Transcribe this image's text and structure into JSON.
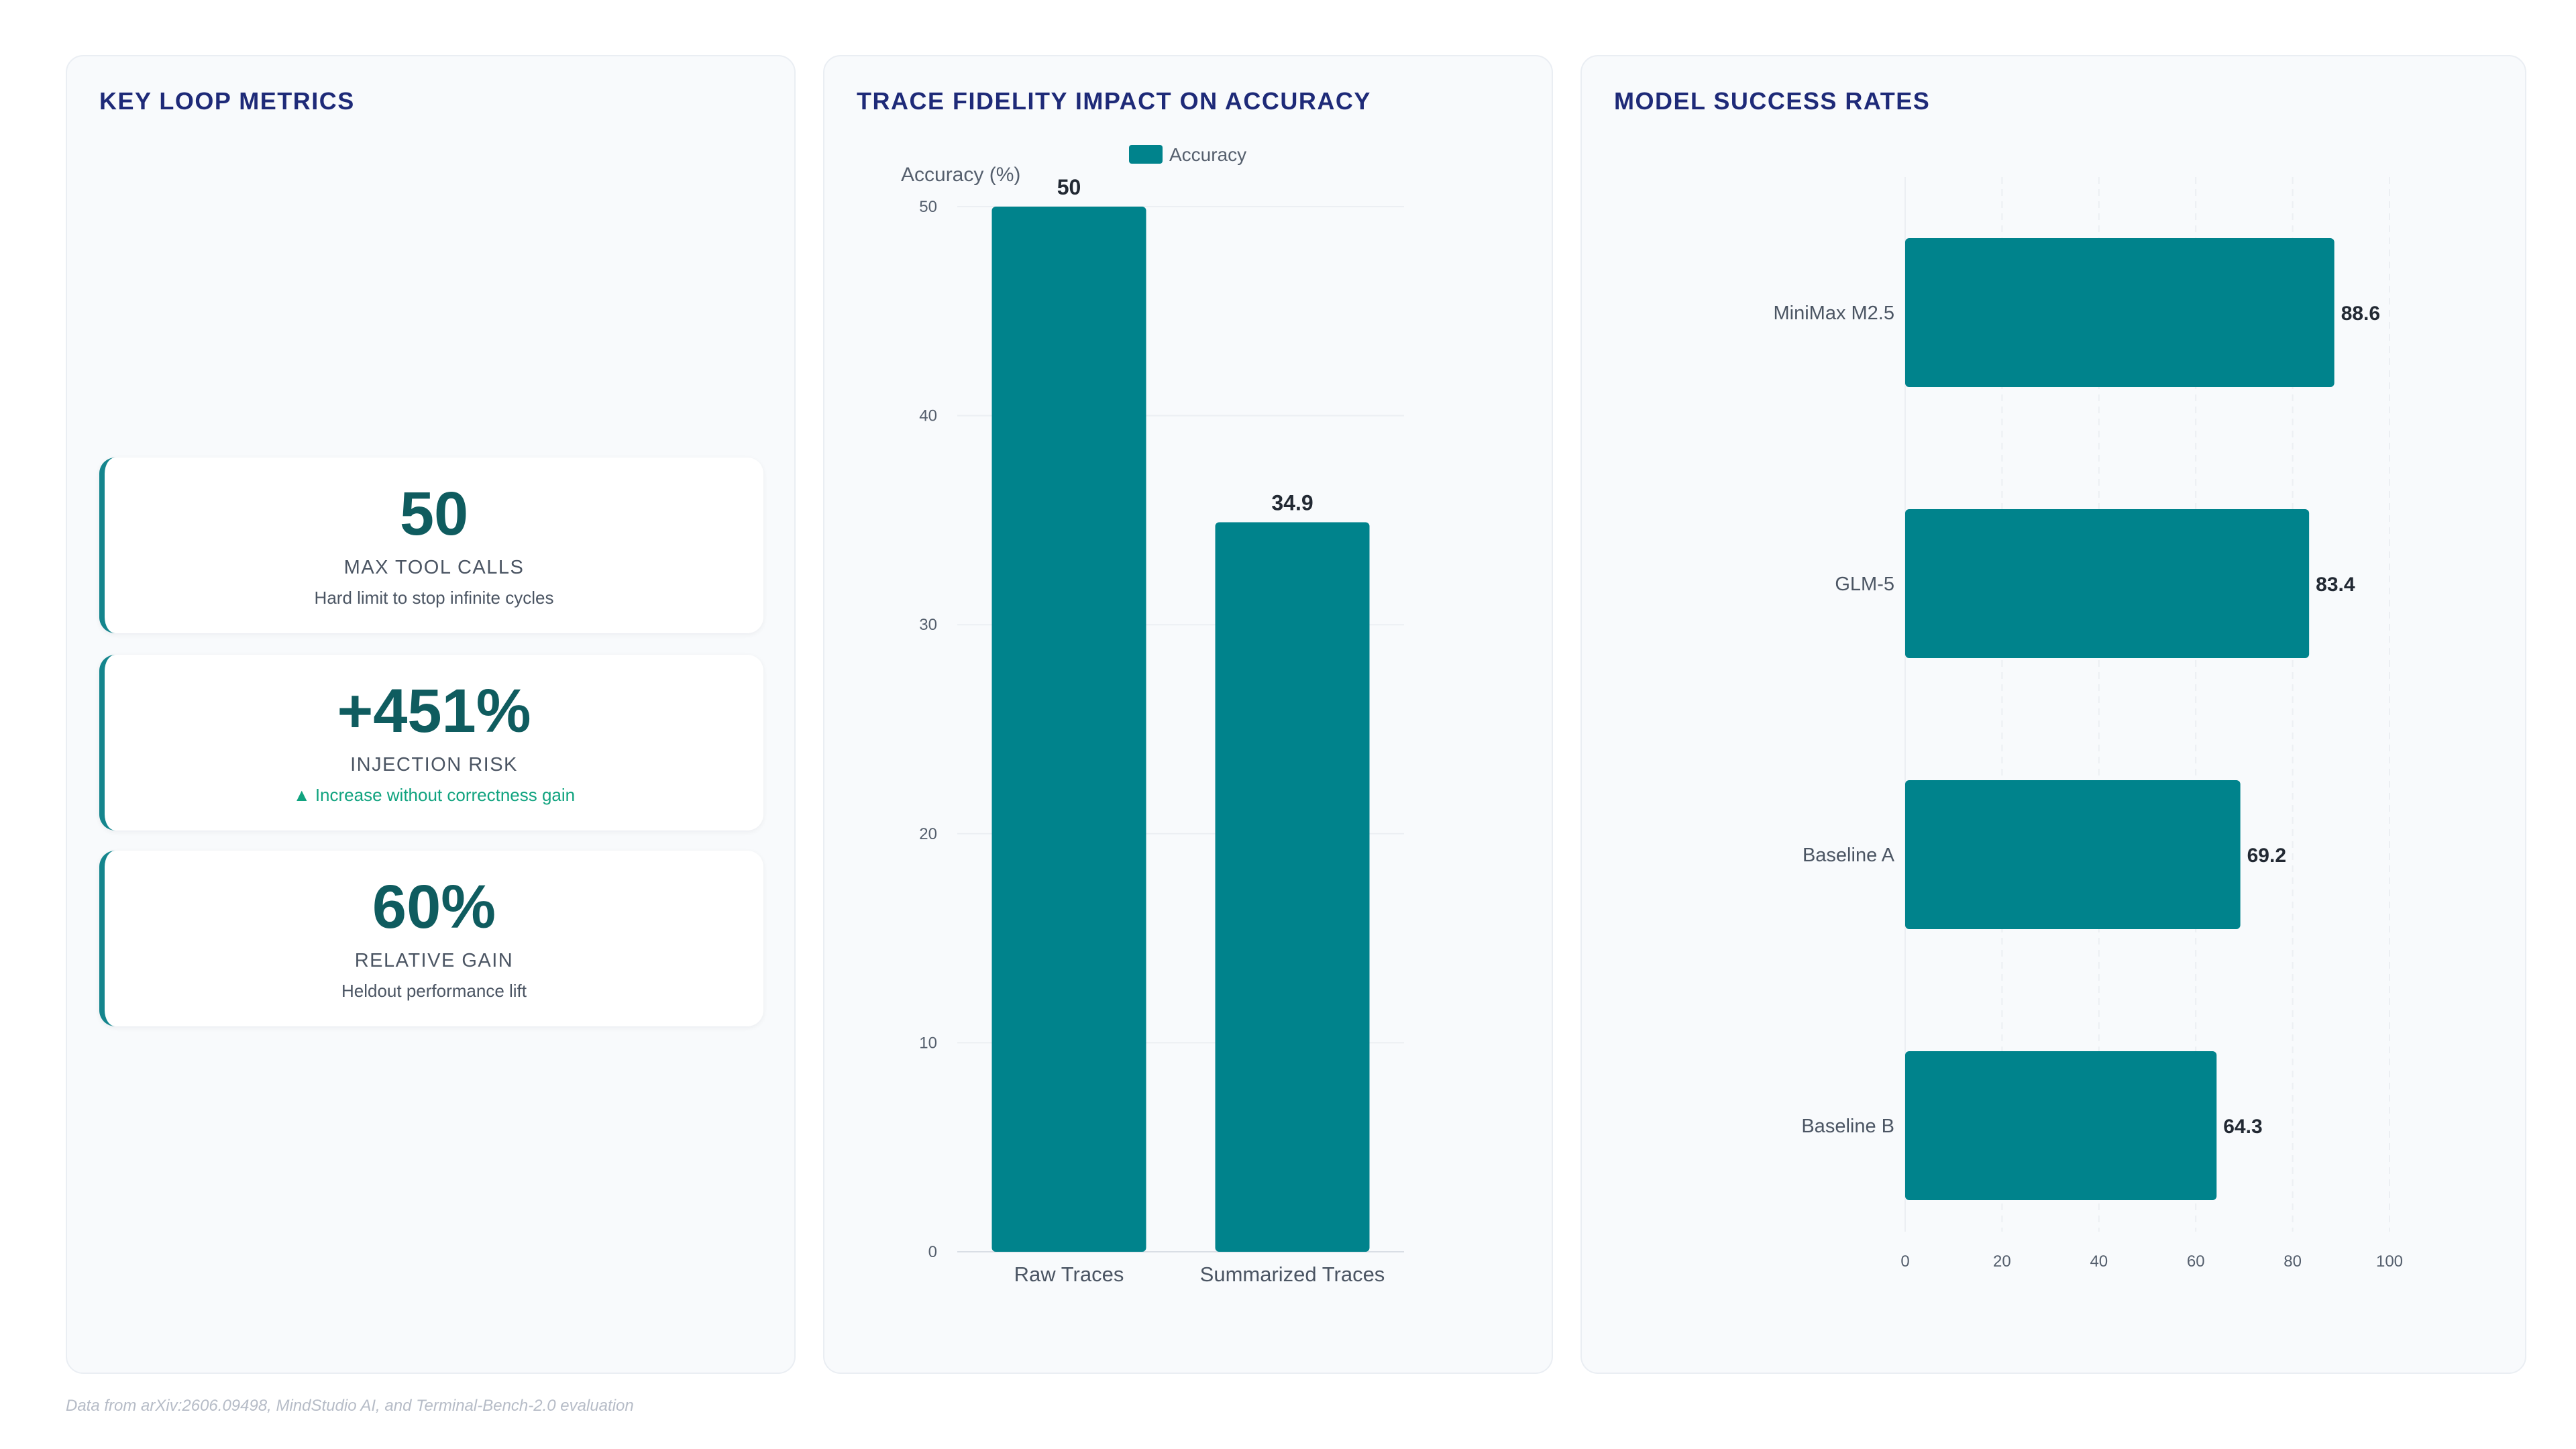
{
  "metrics_panel": {
    "title": "KEY LOOP METRICS",
    "cards": [
      {
        "value": "50",
        "label": "MAX TOOL CALLS",
        "desc": "Hard limit to stop infinite cycles"
      },
      {
        "value": "+451%",
        "label": "INJECTION RISK",
        "desc": "▲ Increase without correctness gain"
      },
      {
        "value": "60%",
        "label": "RELATIVE GAIN",
        "desc": "Heldout performance lift"
      }
    ]
  },
  "trace_panel": {
    "title": "TRACE FIDELITY IMPACT ON ACCURACY"
  },
  "models_panel": {
    "title": "MODEL SUCCESS RATES"
  },
  "footer": "Data from arXiv:2606.09498, MindStudio AI, and Terminal-Bench-2.0 evaluation",
  "colors": {
    "bar": "#00838c",
    "title": "#1e2a78",
    "accent_positive": "#10a37f"
  },
  "chart_data": [
    {
      "type": "bar",
      "title": "TRACE FIDELITY IMPACT ON ACCURACY",
      "categories": [
        "Raw Traces",
        "Summarized Traces"
      ],
      "series": [
        {
          "name": "Accuracy",
          "values": [
            50,
            34.9
          ]
        }
      ],
      "ylabel": "Accuracy (%)",
      "xlabel": "",
      "ylim": [
        0,
        50
      ],
      "yticks": [
        0,
        10,
        20,
        30,
        40,
        50
      ],
      "legend": "top-center",
      "grid": true
    },
    {
      "type": "bar",
      "orientation": "horizontal",
      "title": "MODEL SUCCESS RATES",
      "categories": [
        "MiniMax M2.5",
        "GLM-5",
        "Baseline A",
        "Baseline B"
      ],
      "values": [
        88.6,
        83.4,
        69.2,
        64.3
      ],
      "xlim": [
        0,
        100
      ],
      "xticks": [
        0,
        20,
        40,
        60,
        80,
        100
      ],
      "grid": true
    }
  ]
}
